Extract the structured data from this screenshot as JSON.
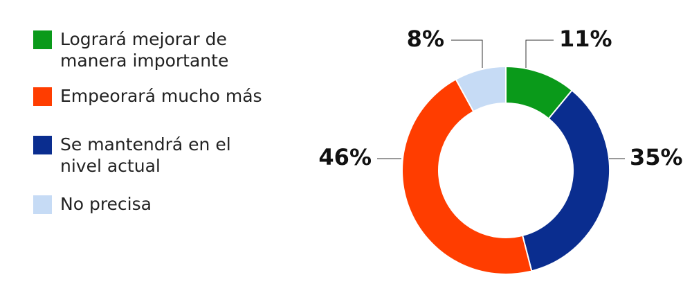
{
  "chart_data": {
    "type": "pie",
    "categories": [
      "Logrará mejorar de manera importante",
      "Se mantendrá en el nivel actual",
      "Empeorará mucho más",
      "No precisa"
    ],
    "values": [
      11,
      35,
      46,
      8
    ],
    "value_labels": [
      "11%",
      "35%",
      "46%",
      "8%"
    ],
    "colors": [
      "#0a9a1a",
      "#0a2d8f",
      "#ff3d00",
      "#c6dbf5"
    ],
    "donut": true
  }
}
